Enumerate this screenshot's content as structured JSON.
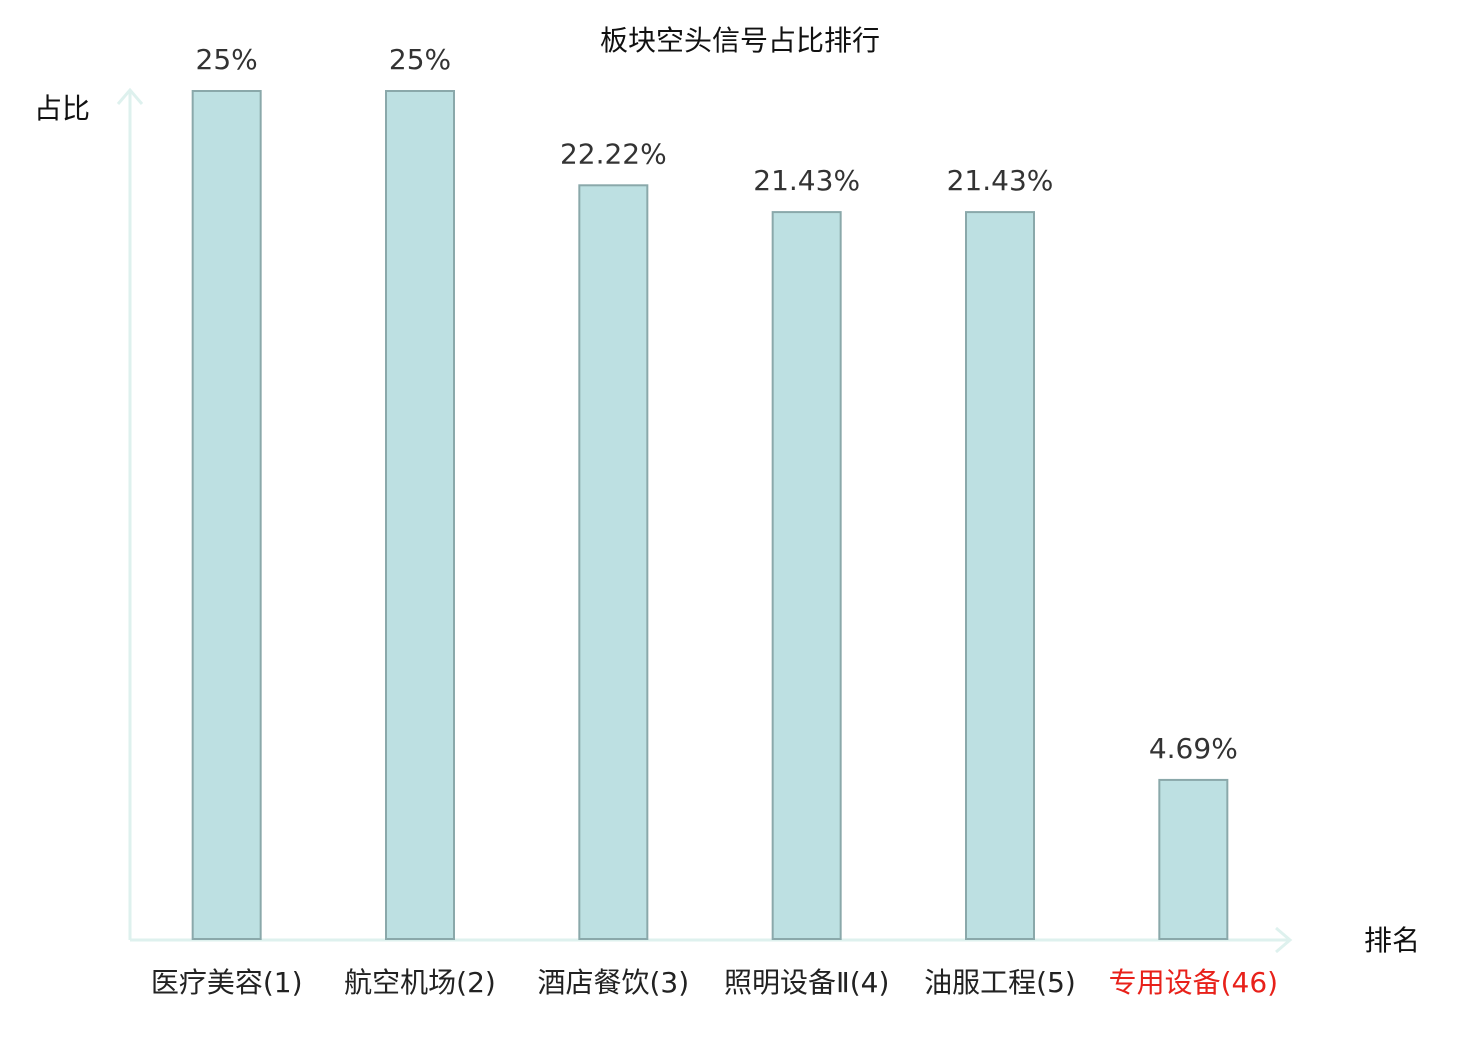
{
  "chart_data": {
    "type": "bar",
    "title": "板块空头信号占比排行",
    "y_label": "占比",
    "x_label": "排名",
    "categories": [
      "医疗美容(1)",
      "航空机场(2)",
      "酒店餐饮(3)",
      "照明设备Ⅱ(4)",
      "油服工程(5)",
      "专用设备(46)"
    ],
    "values": [
      25,
      25,
      22.22,
      21.43,
      21.43,
      4.69
    ],
    "value_labels": [
      "25%",
      "25%",
      "22.22%",
      "21.43%",
      "21.43%",
      "4.69%"
    ],
    "color": "#bde0e2",
    "edge_color": "#8aa8aa",
    "category_colors": [
      "#222222",
      "#222222",
      "#222222",
      "#222222",
      "#222222",
      "#e8211a"
    ],
    "ylim": [
      0,
      25
    ]
  }
}
